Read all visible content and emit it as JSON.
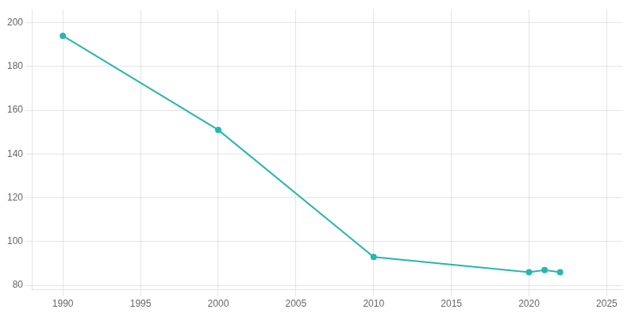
{
  "chart_data": {
    "type": "line",
    "x": [
      1990,
      2000,
      2010,
      2020,
      2021,
      2022
    ],
    "values": [
      194,
      151,
      93,
      86,
      87,
      86
    ],
    "color": "#2ab5b0",
    "marker": "circle",
    "xlim": [
      1988,
      2026
    ],
    "ylim": [
      78,
      206
    ],
    "xticks": [
      1990,
      1995,
      2000,
      2005,
      2010,
      2015,
      2020,
      2025
    ],
    "yticks": [
      80,
      100,
      120,
      140,
      160,
      180,
      200
    ],
    "grid": true
  }
}
